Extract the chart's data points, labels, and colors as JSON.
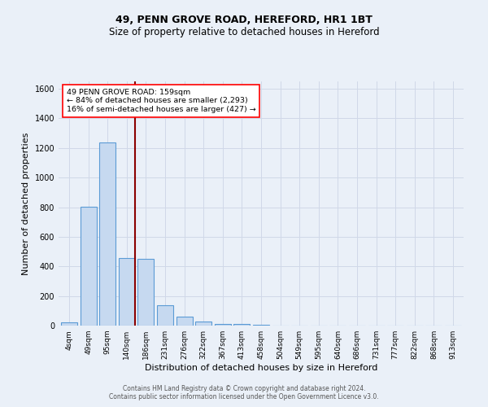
{
  "title": "49, PENN GROVE ROAD, HEREFORD, HR1 1BT",
  "subtitle": "Size of property relative to detached houses in Hereford",
  "xlabel": "Distribution of detached houses by size in Hereford",
  "ylabel": "Number of detached properties",
  "bar_labels": [
    "4sqm",
    "49sqm",
    "95sqm",
    "140sqm",
    "186sqm",
    "231sqm",
    "276sqm",
    "322sqm",
    "367sqm",
    "413sqm",
    "458sqm",
    "504sqm",
    "549sqm",
    "595sqm",
    "640sqm",
    "686sqm",
    "731sqm",
    "777sqm",
    "822sqm",
    "868sqm",
    "913sqm"
  ],
  "bar_values": [
    22,
    805,
    1240,
    455,
    450,
    135,
    60,
    25,
    12,
    10,
    5,
    0,
    0,
    0,
    0,
    0,
    0,
    0,
    0,
    0,
    0
  ],
  "bar_color": "#c6d9f0",
  "bar_edge_color": "#5b9bd5",
  "annotation_line_color": "#8b0000",
  "annotation_text_lines": [
    "49 PENN GROVE ROAD: 159sqm",
    "← 84% of detached houses are smaller (2,293)",
    "16% of semi-detached houses are larger (427) →"
  ],
  "annotation_box_color": "white",
  "annotation_box_edge_color": "red",
  "ylim": [
    0,
    1650
  ],
  "yticks": [
    0,
    200,
    400,
    600,
    800,
    1000,
    1200,
    1400,
    1600
  ],
  "grid_color": "#d0d8e8",
  "background_color": "#eaf0f8",
  "footer_line1": "Contains HM Land Registry data © Crown copyright and database right 2024.",
  "footer_line2": "Contains public sector information licensed under the Open Government Licence v3.0.",
  "title_fontsize": 9,
  "subtitle_fontsize": 8.5,
  "label_fontsize": 8,
  "tick_fontsize": 6.5,
  "footer_fontsize": 5.5
}
